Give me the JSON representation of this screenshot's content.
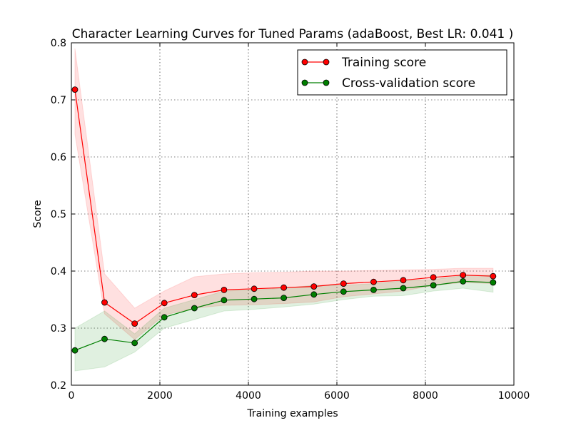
{
  "chart_data": {
    "type": "line",
    "title": "Character Learning Curves for Tuned Params (adaBoost, Best LR: 0.041 )",
    "xlabel": "Training examples",
    "ylabel": "Score",
    "xlim": [
      0,
      10000
    ],
    "ylim": [
      0.2,
      0.8
    ],
    "xticks": [
      0,
      2000,
      4000,
      6000,
      8000,
      10000
    ],
    "xtick_labels": [
      "0",
      "2000",
      "4000",
      "6000",
      "8000",
      "10000"
    ],
    "yticks": [
      0.2,
      0.3,
      0.4,
      0.5,
      0.6,
      0.7,
      0.8
    ],
    "ytick_labels": [
      "0.2",
      "0.3",
      "0.4",
      "0.5",
      "0.6",
      "0.7",
      "0.8"
    ],
    "grid": true,
    "legend_position": "top-right",
    "x": [
      80,
      750,
      1430,
      2100,
      2780,
      3450,
      4130,
      4800,
      5480,
      6150,
      6830,
      7500,
      8180,
      8850,
      9530
    ],
    "series": [
      {
        "name": "Training score",
        "color": "#ff0000",
        "values": [
          0.718,
          0.345,
          0.308,
          0.344,
          0.358,
          0.367,
          0.369,
          0.371,
          0.373,
          0.378,
          0.381,
          0.384,
          0.389,
          0.393,
          0.391
        ],
        "band_upper": [
          0.79,
          0.395,
          0.335,
          0.365,
          0.39,
          0.395,
          0.397,
          0.398,
          0.4,
          0.4,
          0.401,
          0.402,
          0.403,
          0.405,
          0.405
        ],
        "band_lower": [
          0.64,
          0.325,
          0.28,
          0.323,
          0.335,
          0.34,
          0.341,
          0.343,
          0.346,
          0.355,
          0.36,
          0.365,
          0.375,
          0.38,
          0.378
        ],
        "band_color": "#ff0000"
      },
      {
        "name": "Cross-validation score",
        "color": "#007f00",
        "values": [
          0.261,
          0.281,
          0.274,
          0.319,
          0.335,
          0.349,
          0.351,
          0.353,
          0.359,
          0.364,
          0.367,
          0.37,
          0.375,
          0.382,
          0.38
        ],
        "band_upper": [
          0.3,
          0.33,
          0.29,
          0.335,
          0.35,
          0.365,
          0.367,
          0.37,
          0.375,
          0.375,
          0.378,
          0.383,
          0.385,
          0.392,
          0.393
        ],
        "band_lower": [
          0.225,
          0.232,
          0.258,
          0.3,
          0.315,
          0.33,
          0.333,
          0.337,
          0.342,
          0.35,
          0.356,
          0.357,
          0.365,
          0.37,
          0.363
        ],
        "band_color": "#008000"
      }
    ]
  }
}
